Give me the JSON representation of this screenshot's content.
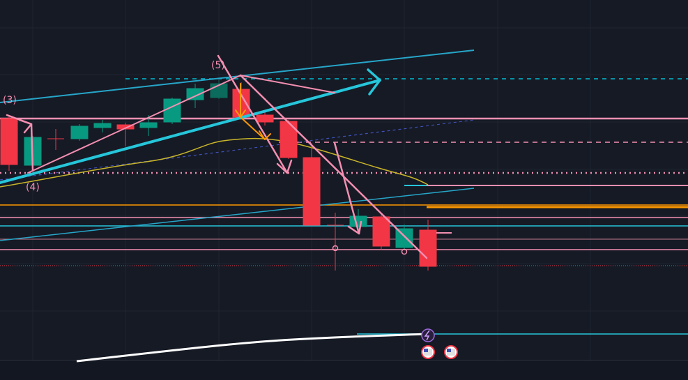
{
  "annotations": [
    "(3)",
    "(4)",
    "(5)"
  ]
}
